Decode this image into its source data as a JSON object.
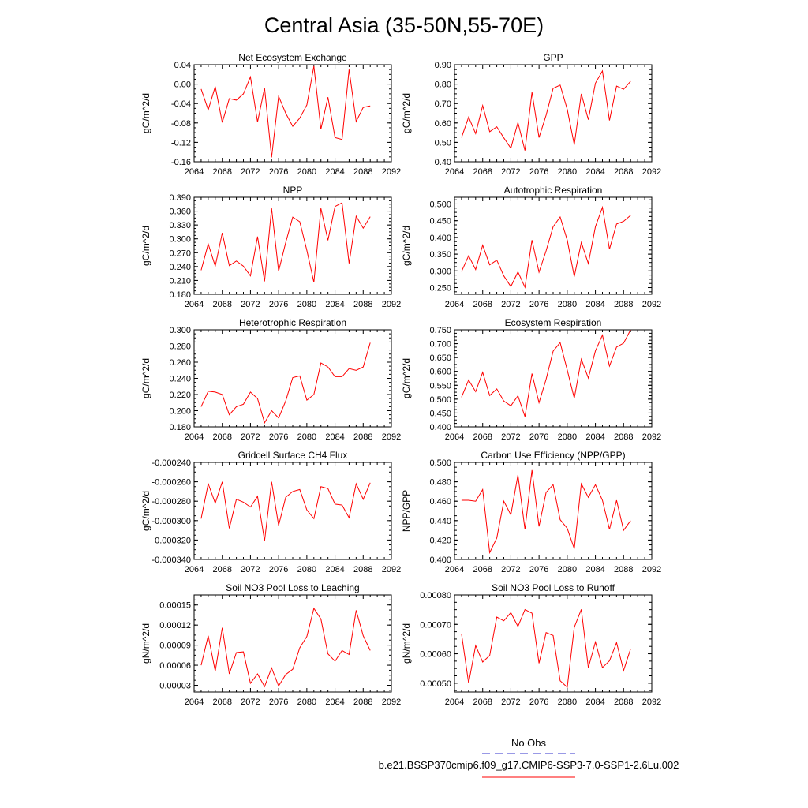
{
  "page_title": "Central Asia (35-50N,55-70E)",
  "legend": {
    "obs_label": "No Obs",
    "obs_color": "#3333cc",
    "case_label": "b.e21.BSSP370cmip6.f09_g17.CMIP6-SSP3-7.0-SSP1-2.6Lu.002",
    "case_color": "#ff0000"
  },
  "chart_data": [
    {
      "type": "line",
      "title": "Net Ecosystem Exchange",
      "ylabel": "gC/m^2/d",
      "xlim": [
        2064,
        2092
      ],
      "xticks": [
        "2064",
        "2068",
        "2072",
        "2076",
        "2080",
        "2084",
        "2088",
        "2092"
      ],
      "ylim": [
        -0.16,
        0.04
      ],
      "yticks": [
        "-0.16",
        "-0.12",
        "-0.08",
        "-0.04",
        "0.00",
        "0.04"
      ],
      "x": [
        2065,
        2066,
        2067,
        2068,
        2069,
        2070,
        2071,
        2072,
        2073,
        2074,
        2075,
        2076,
        2077,
        2078,
        2079,
        2080,
        2081,
        2082,
        2083,
        2084,
        2085,
        2086,
        2087,
        2088,
        2089
      ],
      "series": [
        {
          "values": [
            -0.01,
            -0.053,
            -0.005,
            -0.079,
            -0.03,
            -0.033,
            -0.02,
            0.015,
            -0.078,
            -0.008,
            -0.151,
            -0.025,
            -0.06,
            -0.087,
            -0.07,
            -0.043,
            0.037,
            -0.093,
            -0.027,
            -0.11,
            -0.114,
            0.03,
            -0.077,
            -0.048,
            -0.045
          ],
          "color": "#ff0000"
        }
      ]
    },
    {
      "type": "line",
      "title": "GPP",
      "ylabel": "gC/m^2/d",
      "xlim": [
        2064,
        2092
      ],
      "xticks": [
        "2064",
        "2068",
        "2072",
        "2076",
        "2080",
        "2084",
        "2088",
        "2092"
      ],
      "ylim": [
        0.4,
        0.9
      ],
      "yticks": [
        "0.40",
        "0.50",
        "0.60",
        "0.70",
        "0.80",
        "0.90"
      ],
      "x": [
        2065,
        2066,
        2067,
        2068,
        2069,
        2070,
        2071,
        2072,
        2073,
        2074,
        2075,
        2076,
        2077,
        2078,
        2079,
        2080,
        2081,
        2082,
        2083,
        2084,
        2085,
        2086,
        2087,
        2088,
        2089
      ],
      "series": [
        {
          "values": [
            0.525,
            0.63,
            0.545,
            0.69,
            0.555,
            0.58,
            0.523,
            0.47,
            0.602,
            0.458,
            0.758,
            0.525,
            0.64,
            0.778,
            0.795,
            0.67,
            0.488,
            0.75,
            0.617,
            0.805,
            0.868,
            0.613,
            0.79,
            0.773,
            0.815
          ],
          "color": "#ff0000"
        }
      ]
    },
    {
      "type": "line",
      "title": "NPP",
      "ylabel": "gC/m^2/d",
      "xlim": [
        2064,
        2092
      ],
      "xticks": [
        "2064",
        "2068",
        "2072",
        "2076",
        "2080",
        "2084",
        "2088",
        "2092"
      ],
      "ylim": [
        0.18,
        0.39
      ],
      "yticks": [
        "0.180",
        "0.210",
        "0.240",
        "0.270",
        "0.300",
        "0.330",
        "0.360",
        "0.390"
      ],
      "x": [
        2065,
        2066,
        2067,
        2068,
        2069,
        2070,
        2071,
        2072,
        2073,
        2074,
        2075,
        2076,
        2077,
        2078,
        2079,
        2080,
        2081,
        2082,
        2083,
        2084,
        2085,
        2086,
        2087,
        2088,
        2089
      ],
      "series": [
        {
          "values": [
            0.232,
            0.289,
            0.241,
            0.313,
            0.242,
            0.252,
            0.241,
            0.22,
            0.305,
            0.208,
            0.366,
            0.23,
            0.292,
            0.347,
            0.337,
            0.275,
            0.206,
            0.366,
            0.297,
            0.37,
            0.378,
            0.247,
            0.349,
            0.323,
            0.348
          ],
          "color": "#ff0000"
        }
      ]
    },
    {
      "type": "line",
      "title": "Autotrophic Respiration",
      "ylabel": "gC/m^2/d",
      "xlim": [
        2064,
        2092
      ],
      "xticks": [
        "2064",
        "2068",
        "2072",
        "2076",
        "2080",
        "2084",
        "2088",
        "2092"
      ],
      "ylim": [
        0.23,
        0.52
      ],
      "yticks": [
        "0.250",
        "0.300",
        "0.350",
        "0.400",
        "0.450",
        "0.500"
      ],
      "x": [
        2065,
        2066,
        2067,
        2068,
        2069,
        2070,
        2071,
        2072,
        2073,
        2074,
        2075,
        2076,
        2077,
        2078,
        2079,
        2080,
        2081,
        2082,
        2083,
        2084,
        2085,
        2086,
        2087,
        2088,
        2089
      ],
      "series": [
        {
          "values": [
            0.298,
            0.345,
            0.304,
            0.377,
            0.318,
            0.332,
            0.285,
            0.253,
            0.297,
            0.251,
            0.392,
            0.296,
            0.36,
            0.432,
            0.461,
            0.392,
            0.283,
            0.385,
            0.322,
            0.432,
            0.49,
            0.365,
            0.44,
            0.448,
            0.466
          ],
          "color": "#ff0000"
        }
      ]
    },
    {
      "type": "line",
      "title": "Heterotrophic Respiration",
      "ylabel": "gC/m^2/d",
      "xlim": [
        2064,
        2092
      ],
      "xticks": [
        "2064",
        "2068",
        "2072",
        "2076",
        "2080",
        "2084",
        "2088",
        "2092"
      ],
      "ylim": [
        0.18,
        0.3
      ],
      "yticks": [
        "0.180",
        "0.200",
        "0.220",
        "0.240",
        "0.260",
        "0.280",
        "0.300"
      ],
      "x": [
        2065,
        2066,
        2067,
        2068,
        2069,
        2070,
        2071,
        2072,
        2073,
        2074,
        2075,
        2076,
        2077,
        2078,
        2079,
        2080,
        2081,
        2082,
        2083,
        2084,
        2085,
        2086,
        2087,
        2088,
        2089
      ],
      "series": [
        {
          "values": [
            0.205,
            0.224,
            0.223,
            0.22,
            0.195,
            0.205,
            0.208,
            0.223,
            0.215,
            0.185,
            0.2,
            0.191,
            0.212,
            0.241,
            0.243,
            0.213,
            0.22,
            0.259,
            0.254,
            0.242,
            0.242,
            0.252,
            0.25,
            0.254,
            0.284
          ],
          "color": "#ff0000"
        }
      ]
    },
    {
      "type": "line",
      "title": "Ecosystem Respiration",
      "ylabel": "gC/m^2/d",
      "xlim": [
        2064,
        2092
      ],
      "xticks": [
        "2064",
        "2068",
        "2072",
        "2076",
        "2080",
        "2084",
        "2088",
        "2092"
      ],
      "ylim": [
        0.4,
        0.75
      ],
      "yticks": [
        "0.400",
        "0.450",
        "0.500",
        "0.550",
        "0.600",
        "0.650",
        "0.700",
        "0.750"
      ],
      "x": [
        2065,
        2066,
        2067,
        2068,
        2069,
        2070,
        2071,
        2072,
        2073,
        2074,
        2075,
        2076,
        2077,
        2078,
        2079,
        2080,
        2081,
        2082,
        2083,
        2084,
        2085,
        2086,
        2087,
        2088,
        2089
      ],
      "series": [
        {
          "values": [
            0.507,
            0.569,
            0.527,
            0.597,
            0.513,
            0.537,
            0.493,
            0.476,
            0.512,
            0.437,
            0.592,
            0.487,
            0.572,
            0.673,
            0.704,
            0.605,
            0.503,
            0.644,
            0.576,
            0.674,
            0.731,
            0.619,
            0.688,
            0.702,
            0.75
          ],
          "color": "#ff0000"
        }
      ]
    },
    {
      "type": "line",
      "title": "Gridcell Surface CH4 Flux",
      "ylabel": "gC/m^2/d",
      "xlim": [
        2064,
        2092
      ],
      "xticks": [
        "2064",
        "2068",
        "2072",
        "2076",
        "2080",
        "2084",
        "2088",
        "2092"
      ],
      "ylim": [
        -0.00034,
        -0.00024
      ],
      "yticks": [
        "-0.000340",
        "-0.000320",
        "-0.000300",
        "-0.000280",
        "-0.000260",
        "-0.000240"
      ],
      "x": [
        2065,
        2066,
        2067,
        2068,
        2069,
        2070,
        2071,
        2072,
        2073,
        2074,
        2075,
        2076,
        2077,
        2078,
        2079,
        2080,
        2081,
        2082,
        2083,
        2084,
        2085,
        2086,
        2087,
        2088,
        2089
      ],
      "series": [
        {
          "values": [
            -0.000298,
            -0.000262,
            -0.000282,
            -0.00026,
            -0.000308,
            -0.000278,
            -0.000281,
            -0.000286,
            -0.000275,
            -0.000321,
            -0.00026,
            -0.000305,
            -0.000276,
            -0.00027,
            -0.000268,
            -0.000289,
            -0.000298,
            -0.000265,
            -0.000267,
            -0.000283,
            -0.000284,
            -0.000297,
            -0.000262,
            -0.000278,
            -0.000261
          ],
          "color": "#ff0000"
        }
      ]
    },
    {
      "type": "line",
      "title": "Carbon Use Efficiency (NPP/GPP)",
      "ylabel": "NPP/GPP",
      "xlim": [
        2064,
        2092
      ],
      "xticks": [
        "2064",
        "2068",
        "2072",
        "2076",
        "2080",
        "2084",
        "2088",
        "2092"
      ],
      "ylim": [
        0.4,
        0.5
      ],
      "yticks": [
        "0.400",
        "0.420",
        "0.440",
        "0.460",
        "0.480",
        "0.500"
      ],
      "x": [
        2065,
        2066,
        2067,
        2068,
        2069,
        2070,
        2071,
        2072,
        2073,
        2074,
        2075,
        2076,
        2077,
        2078,
        2079,
        2080,
        2081,
        2082,
        2083,
        2084,
        2085,
        2086,
        2087,
        2088,
        2089
      ],
      "series": [
        {
          "values": [
            0.461,
            0.461,
            0.46,
            0.472,
            0.407,
            0.422,
            0.46,
            0.446,
            0.487,
            0.431,
            0.492,
            0.434,
            0.469,
            0.477,
            0.441,
            0.432,
            0.411,
            0.478,
            0.464,
            0.477,
            0.461,
            0.431,
            0.461,
            0.43,
            0.44
          ],
          "color": "#ff0000"
        }
      ]
    },
    {
      "type": "line",
      "title": "Soil NO3 Pool Loss to Leaching",
      "ylabel": "gN/m^2/d",
      "xlim": [
        2064,
        2092
      ],
      "xticks": [
        "2064",
        "2068",
        "2072",
        "2076",
        "2080",
        "2084",
        "2088",
        "2092"
      ],
      "ylim": [
        2e-05,
        0.000165
      ],
      "yticks": [
        "0.00003",
        "0.00006",
        "0.00009",
        "0.00012",
        "0.00015"
      ],
      "x": [
        2065,
        2066,
        2067,
        2068,
        2069,
        2070,
        2071,
        2072,
        2073,
        2074,
        2075,
        2076,
        2077,
        2078,
        2079,
        2080,
        2081,
        2082,
        2083,
        2084,
        2085,
        2086,
        2087,
        2088,
        2089
      ],
      "series": [
        {
          "values": [
            6e-05,
            0.000104,
            5.1e-05,
            0.000116,
            4.7e-05,
            7.9e-05,
            8e-05,
            3.3e-05,
            4.7e-05,
            2.8e-05,
            5.6e-05,
            2.9e-05,
            4.6e-05,
            5.4e-05,
            8.6e-05,
            0.000103,
            0.000145,
            0.000129,
            7.7e-05,
            6.6e-05,
            8.2e-05,
            7.6e-05,
            0.000142,
            0.000104,
            8.2e-05
          ],
          "color": "#ff0000"
        }
      ]
    },
    {
      "type": "line",
      "title": "Soil NO3 Pool Loss to Runoff",
      "ylabel": "gN/m^2/d",
      "xlim": [
        2064,
        2092
      ],
      "xticks": [
        "2064",
        "2068",
        "2072",
        "2076",
        "2080",
        "2084",
        "2088",
        "2092"
      ],
      "ylim": [
        0.00047,
        0.0008
      ],
      "yticks": [
        "0.00050",
        "0.00060",
        "0.00070",
        "0.00080"
      ],
      "x": [
        2065,
        2066,
        2067,
        2068,
        2069,
        2070,
        2071,
        2072,
        2073,
        2074,
        2075,
        2076,
        2077,
        2078,
        2079,
        2080,
        2081,
        2082,
        2083,
        2084,
        2085,
        2086,
        2087,
        2088,
        2089
      ],
      "series": [
        {
          "values": [
            0.000668,
            0.0005,
            0.000628,
            0.000572,
            0.000594,
            0.000725,
            0.000712,
            0.00074,
            0.000693,
            0.00075,
            0.000738,
            0.000568,
            0.000672,
            0.000662,
            0.000508,
            0.000486,
            0.00069,
            0.000751,
            0.000553,
            0.00064,
            0.000553,
            0.000576,
            0.000638,
            0.000543,
            0.000617
          ],
          "color": "#ff0000"
        }
      ]
    }
  ]
}
